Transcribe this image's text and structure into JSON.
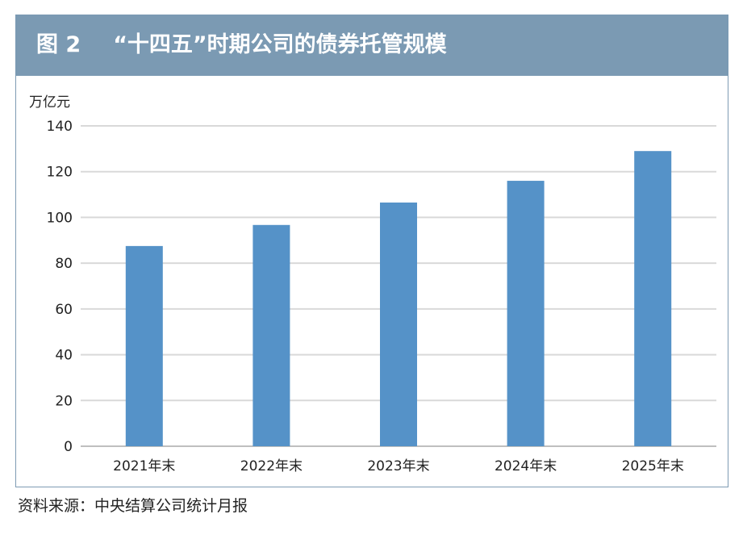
{
  "figure": {
    "label": "图 2",
    "title": "“十四五”时期公司的债券托管规模"
  },
  "source_note": "资料来源：中央结算公司统计月报",
  "colors": {
    "header_bg": "#7b9ab3",
    "bar": "#5592c8",
    "gridline": "#d9d9d9"
  },
  "chart_data": {
    "type": "bar",
    "title": "“十四五”时期公司的债券托管规模",
    "unit_label": "万亿元",
    "xlabel": "",
    "ylabel": "",
    "categories": [
      "2021年末",
      "2022年末",
      "2023年末",
      "2024年末",
      "2025年末"
    ],
    "values": [
      87.5,
      96.7,
      106.5,
      116,
      129
    ],
    "ylim": [
      0,
      140
    ],
    "yticks": [
      0,
      20,
      40,
      60,
      80,
      100,
      120,
      140
    ],
    "grid": true,
    "legend": "none"
  }
}
